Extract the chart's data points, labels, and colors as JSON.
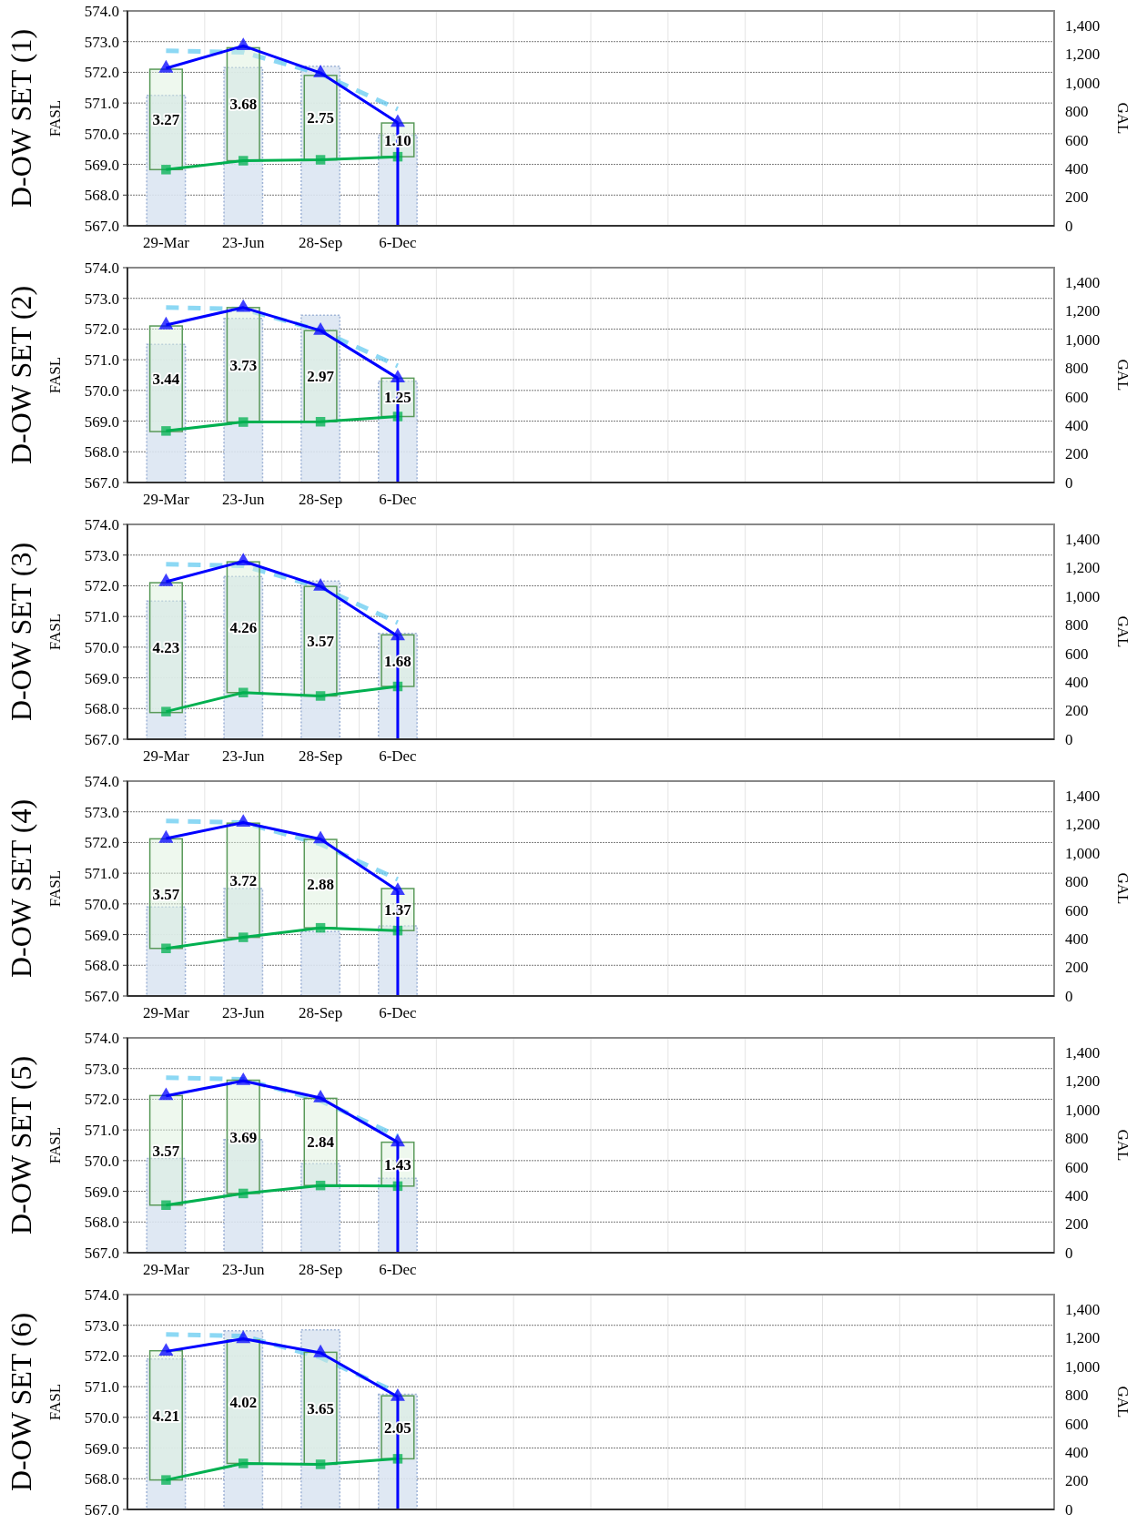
{
  "chart_data": [
    {
      "type": "bar",
      "title": "D-OW SET (1)",
      "ylabel": "FASL",
      "y2label": "GAL",
      "categories": [
        "29-Mar",
        "23-Jun",
        "28-Sep",
        "6-Dec",
        null,
        null,
        null,
        null,
        null,
        null,
        null,
        null
      ],
      "ylim": [
        567,
        574
      ],
      "yticks": [
        {
          "value": 567,
          "label": "567.0"
        },
        {
          "value": 568,
          "label": "568.0"
        },
        {
          "value": 569,
          "label": "569.0"
        },
        {
          "value": 570,
          "label": "570.0"
        },
        {
          "value": 571,
          "label": "571.0"
        },
        {
          "value": 572,
          "label": "572.0"
        },
        {
          "value": 573,
          "label": "573.0"
        },
        {
          "value": 574,
          "label": "574.0"
        }
      ],
      "y2lim": [
        0,
        1500
      ],
      "y2ticks": [
        0,
        200,
        400,
        600,
        800,
        {
          "value": 1000,
          "label": "1,000"
        },
        {
          "value": 1200,
          "label": "1,200"
        },
        {
          "value": 1400,
          "label": "1,400"
        }
      ],
      "grid": true,
      "series": [
        {
          "axis": "y2",
          "color": "#dce6f2",
          "values": [
            911,
            1104,
            1114,
            632,
            null,
            null,
            null,
            null,
            null,
            null,
            null,
            null
          ]
        },
        {
          "type": "line",
          "color": "#5bc8f0",
          "line_style": "dashed",
          "marker": "none",
          "values": [
            572.7,
            572.65,
            571.95,
            570.8,
            null,
            null,
            null,
            null,
            null,
            null,
            null,
            null
          ]
        },
        {
          "type": "bar",
          "color": "#ddf2dd",
          "base": [
            568.83,
            569.12,
            569.15,
            569.25,
            null,
            null,
            null,
            null,
            null,
            null,
            null,
            null
          ],
          "values": [
            3.27,
            3.68,
            2.75,
            1.1,
            null,
            null,
            null,
            null,
            null,
            null,
            null,
            null
          ],
          "value_labels": [
            "3.27",
            "3.68",
            "2.75",
            "1.10",
            null,
            null,
            null,
            null,
            null,
            null,
            null,
            null
          ]
        },
        {
          "type": "line",
          "color": "#00b050",
          "marker": "square",
          "values": [
            568.83,
            569.12,
            569.15,
            569.25,
            null,
            null,
            null,
            null,
            null,
            null,
            null,
            null
          ]
        },
        {
          "type": "line",
          "color": "#0000ff",
          "marker": "triangle",
          "values": [
            572.13,
            572.86,
            571.98,
            570.36,
            null,
            null,
            null,
            null,
            null,
            null,
            null,
            null
          ],
          "errors": [
            null,
            null,
            null,
            [
              567.0,
              570.36
            ],
            null,
            null,
            null,
            null,
            null,
            null,
            null,
            null
          ]
        }
      ]
    },
    {
      "type": "bar",
      "title": "D-OW SET (2)",
      "ylabel": "FASL",
      "y2label": "GAL",
      "categories": [
        "29-Mar",
        "23-Jun",
        "28-Sep",
        "6-Dec",
        null,
        null,
        null,
        null,
        null,
        null,
        null,
        null
      ],
      "ylim": [
        567,
        574
      ],
      "yticks": [
        {
          "value": 567,
          "label": "567.0"
        },
        {
          "value": 568,
          "label": "568.0"
        },
        {
          "value": 569,
          "label": "569.0"
        },
        {
          "value": 570,
          "label": "570.0"
        },
        {
          "value": 571,
          "label": "571.0"
        },
        {
          "value": 572,
          "label": "572.0"
        },
        {
          "value": 573,
          "label": "573.0"
        },
        {
          "value": 574,
          "label": "574.0"
        }
      ],
      "y2lim": [
        0,
        1500
      ],
      "y2ticks": [
        0,
        200,
        400,
        600,
        800,
        {
          "value": 1000,
          "label": "1,000"
        },
        {
          "value": 1200,
          "label": "1,200"
        },
        {
          "value": 1400,
          "label": "1,400"
        }
      ],
      "grid": true,
      "series": [
        {
          "axis": "y2",
          "color": "#dce6f2",
          "values": [
            964,
            1146,
            1168,
            707,
            null,
            null,
            null,
            null,
            null,
            null,
            null,
            null
          ]
        },
        {
          "type": "line",
          "color": "#5bc8f0",
          "line_style": "dashed",
          "marker": "none",
          "values": [
            572.7,
            572.65,
            571.95,
            570.8,
            null,
            null,
            null,
            null,
            null,
            null,
            null,
            null
          ]
        },
        {
          "type": "bar",
          "color": "#ddf2dd",
          "base": [
            568.66,
            568.97,
            568.98,
            569.15,
            null,
            null,
            null,
            null,
            null,
            null,
            null,
            null
          ],
          "values": [
            3.44,
            3.73,
            2.97,
            1.25,
            null,
            null,
            null,
            null,
            null,
            null,
            null,
            null
          ],
          "value_labels": [
            "3.44",
            "3.73",
            "2.97",
            "1.25",
            null,
            null,
            null,
            null,
            null,
            null,
            null,
            null
          ]
        },
        {
          "type": "line",
          "color": "#00b050",
          "marker": "square",
          "values": [
            568.68,
            568.97,
            568.98,
            569.15,
            null,
            null,
            null,
            null,
            null,
            null,
            null,
            null
          ]
        },
        {
          "type": "line",
          "color": "#0000ff",
          "marker": "triangle",
          "values": [
            572.13,
            572.7,
            571.95,
            570.4,
            null,
            null,
            null,
            null,
            null,
            null,
            null,
            null
          ],
          "errors": [
            null,
            null,
            null,
            [
              567.0,
              570.4
            ],
            null,
            null,
            null,
            null,
            null,
            null,
            null,
            null
          ]
        }
      ]
    },
    {
      "type": "bar",
      "title": "D-OW SET (3)",
      "ylabel": "FASL",
      "y2label": "GAL",
      "categories": [
        "29-Mar",
        "23-Jun",
        "28-Sep",
        "6-Dec",
        null,
        null,
        null,
        null,
        null,
        null,
        null,
        null
      ],
      "ylim": [
        567,
        574
      ],
      "yticks": [
        {
          "value": 567,
          "label": "567.0"
        },
        {
          "value": 568,
          "label": "568.0"
        },
        {
          "value": 569,
          "label": "569.0"
        },
        {
          "value": 570,
          "label": "570.0"
        },
        {
          "value": 571,
          "label": "571.0"
        },
        {
          "value": 572,
          "label": "572.0"
        },
        {
          "value": 573,
          "label": "573.0"
        },
        {
          "value": 574,
          "label": "574.0"
        }
      ],
      "y2lim": [
        0,
        1500
      ],
      "y2ticks": [
        0,
        200,
        400,
        600,
        800,
        {
          "value": 1000,
          "label": "1,000"
        },
        {
          "value": 1200,
          "label": "1,200"
        },
        {
          "value": 1400,
          "label": "1,400"
        }
      ],
      "grid": true,
      "series": [
        {
          "axis": "y2",
          "color": "#dce6f2",
          "values": [
            964,
            1136,
            1104,
            739,
            null,
            null,
            null,
            null,
            null,
            null,
            null,
            null
          ]
        },
        {
          "type": "line",
          "color": "#5bc8f0",
          "line_style": "dashed",
          "marker": "none",
          "values": [
            572.7,
            572.65,
            571.95,
            570.8,
            null,
            null,
            null,
            null,
            null,
            null,
            null,
            null
          ]
        },
        {
          "type": "bar",
          "color": "#ddf2dd",
          "base": [
            567.87,
            568.52,
            568.41,
            568.72,
            null,
            null,
            null,
            null,
            null,
            null,
            null,
            null
          ],
          "values": [
            4.23,
            4.26,
            3.57,
            1.68,
            null,
            null,
            null,
            null,
            null,
            null,
            null,
            null
          ],
          "value_labels": [
            "4.23",
            "4.26",
            "3.57",
            "1.68",
            null,
            null,
            null,
            null,
            null,
            null,
            null,
            null
          ]
        },
        {
          "type": "line",
          "color": "#00b050",
          "marker": "square",
          "values": [
            567.9,
            568.52,
            568.41,
            568.72,
            null,
            null,
            null,
            null,
            null,
            null,
            null,
            null
          ]
        },
        {
          "type": "line",
          "color": "#0000ff",
          "marker": "triangle",
          "values": [
            572.13,
            572.8,
            571.98,
            570.36,
            null,
            null,
            null,
            null,
            null,
            null,
            null,
            null
          ],
          "errors": [
            null,
            null,
            null,
            [
              567.0,
              570.36
            ],
            null,
            null,
            null,
            null,
            null,
            null,
            null,
            null
          ]
        }
      ]
    },
    {
      "type": "bar",
      "title": "D-OW SET (4)",
      "ylabel": "FASL",
      "y2label": "GAL",
      "categories": [
        "29-Mar",
        "23-Jun",
        "28-Sep",
        "6-Dec",
        null,
        null,
        null,
        null,
        null,
        null,
        null,
        null
      ],
      "ylim": [
        567,
        574
      ],
      "yticks": [
        {
          "value": 567,
          "label": "567.0"
        },
        {
          "value": 568,
          "label": "568.0"
        },
        {
          "value": 569,
          "label": "569.0"
        },
        {
          "value": 570,
          "label": "570.0"
        },
        {
          "value": 571,
          "label": "571.0"
        },
        {
          "value": 572,
          "label": "572.0"
        },
        {
          "value": 573,
          "label": "573.0"
        },
        {
          "value": 574,
          "label": "574.0"
        }
      ],
      "y2lim": [
        0,
        1500
      ],
      "y2ticks": [
        0,
        200,
        400,
        600,
        800,
        {
          "value": 1000,
          "label": "1,000"
        },
        {
          "value": 1200,
          "label": "1,200"
        },
        {
          "value": 1400,
          "label": "1,400"
        }
      ],
      "grid": true,
      "series": [
        {
          "axis": "y2",
          "color": "#dce6f2",
          "values": [
            621,
            750,
            450,
            489,
            null,
            null,
            null,
            null,
            null,
            null,
            null,
            null
          ]
        },
        {
          "type": "line",
          "color": "#5bc8f0",
          "line_style": "dashed",
          "marker": "none",
          "values": [
            572.7,
            572.65,
            571.95,
            570.8,
            null,
            null,
            null,
            null,
            null,
            null,
            null,
            null
          ]
        },
        {
          "type": "bar",
          "color": "#ddf2dd",
          "base": [
            568.55,
            568.91,
            569.22,
            569.13,
            null,
            null,
            null,
            null,
            null,
            null,
            null,
            null
          ],
          "values": [
            3.57,
            3.72,
            2.88,
            1.37,
            null,
            null,
            null,
            null,
            null,
            null,
            null,
            null
          ],
          "value_labels": [
            "3.57",
            "3.72",
            "2.88",
            "1.37",
            null,
            null,
            null,
            null,
            null,
            null,
            null,
            null
          ]
        },
        {
          "type": "line",
          "color": "#00b050",
          "marker": "square",
          "values": [
            568.55,
            568.91,
            569.22,
            569.13,
            null,
            null,
            null,
            null,
            null,
            null,
            null,
            null
          ]
        },
        {
          "type": "line",
          "color": "#0000ff",
          "marker": "triangle",
          "values": [
            572.13,
            572.65,
            572.11,
            570.43,
            null,
            null,
            null,
            null,
            null,
            null,
            null,
            null
          ],
          "errors": [
            null,
            null,
            null,
            [
              567.0,
              570.43
            ],
            null,
            null,
            null,
            null,
            null,
            null,
            null,
            null
          ]
        }
      ]
    },
    {
      "type": "bar",
      "title": "D-OW SET (5)",
      "ylabel": "FASL",
      "y2label": "GAL",
      "categories": [
        "29-Mar",
        "23-Jun",
        "28-Sep",
        "6-Dec",
        null,
        null,
        null,
        null,
        null,
        null,
        null,
        null
      ],
      "ylim": [
        567,
        574
      ],
      "yticks": [
        {
          "value": 567,
          "label": "567.0"
        },
        {
          "value": 568,
          "label": "568.0"
        },
        {
          "value": 569,
          "label": "569.0"
        },
        {
          "value": 570,
          "label": "570.0"
        },
        {
          "value": 571,
          "label": "571.0"
        },
        {
          "value": 572,
          "label": "572.0"
        },
        {
          "value": 573,
          "label": "573.0"
        },
        {
          "value": 574,
          "label": "574.0"
        }
      ],
      "y2lim": [
        0,
        1500
      ],
      "y2ticks": [
        0,
        200,
        400,
        600,
        800,
        {
          "value": 1000,
          "label": "1,000"
        },
        {
          "value": 1200,
          "label": "1,200"
        },
        {
          "value": 1400,
          "label": "1,400"
        }
      ],
      "grid": true,
      "series": [
        {
          "axis": "y2",
          "color": "#dce6f2",
          "values": [
            658,
            789,
            621,
            519,
            null,
            null,
            null,
            null,
            null,
            null,
            null,
            null
          ]
        },
        {
          "type": "line",
          "color": "#5bc8f0",
          "line_style": "dashed",
          "marker": "none",
          "values": [
            572.7,
            572.65,
            571.95,
            570.8,
            null,
            null,
            null,
            null,
            null,
            null,
            null,
            null
          ]
        },
        {
          "type": "bar",
          "color": "#ddf2dd",
          "base": [
            568.55,
            568.93,
            569.19,
            569.17,
            null,
            null,
            null,
            null,
            null,
            null,
            null,
            null
          ],
          "values": [
            3.57,
            3.69,
            2.84,
            1.43,
            null,
            null,
            null,
            null,
            null,
            null,
            null,
            null
          ],
          "value_labels": [
            "3.57",
            "3.69",
            "2.84",
            "1.43",
            null,
            null,
            null,
            null,
            null,
            null,
            null,
            null
          ]
        },
        {
          "type": "line",
          "color": "#00b050",
          "marker": "square",
          "values": [
            568.55,
            568.93,
            569.19,
            569.17,
            null,
            null,
            null,
            null,
            null,
            null,
            null,
            null
          ]
        },
        {
          "type": "line",
          "color": "#0000ff",
          "marker": "triangle",
          "values": [
            572.11,
            572.6,
            572.04,
            570.6,
            null,
            null,
            null,
            null,
            null,
            null,
            null,
            null
          ],
          "errors": [
            null,
            null,
            null,
            [
              567.0,
              570.6
            ],
            null,
            null,
            null,
            null,
            null,
            null,
            null,
            null
          ]
        }
      ]
    },
    {
      "type": "bar",
      "title": "D-OW SET (6)",
      "ylabel": "FASL",
      "y2label": "GAL",
      "categories": [
        null,
        null,
        null,
        null,
        null,
        null,
        null,
        null,
        null,
        null,
        null,
        null
      ],
      "ylim": [
        567,
        574
      ],
      "yticks": [
        {
          "value": 567,
          "label": "567.0"
        },
        {
          "value": 568,
          "label": "568.0"
        },
        {
          "value": 569,
          "label": "569.0"
        },
        {
          "value": 570,
          "label": "570.0"
        },
        {
          "value": 571,
          "label": "571.0"
        },
        {
          "value": 572,
          "label": "572.0"
        },
        {
          "value": 573,
          "label": "573.0"
        },
        {
          "value": 574,
          "label": "574.0"
        }
      ],
      "y2lim": [
        0,
        1500
      ],
      "y2ticks": [
        0,
        200,
        400,
        600,
        800,
        {
          "value": 1000,
          "label": "1,000"
        },
        {
          "value": 1200,
          "label": "1,200"
        },
        {
          "value": 1400,
          "label": "1,400"
        }
      ],
      "grid": true,
      "series": [
        {
          "axis": "y2",
          "color": "#dce6f2",
          "values": [
            1050,
            1247,
            1254,
            804,
            null,
            null,
            null,
            null,
            null,
            null,
            null,
            null
          ]
        },
        {
          "type": "line",
          "color": "#5bc8f0",
          "line_style": "dashed",
          "marker": "none",
          "values": [
            572.7,
            572.65,
            571.95,
            570.8,
            null,
            null,
            null,
            null,
            null,
            null,
            null,
            null
          ]
        },
        {
          "type": "bar",
          "color": "#ddf2dd",
          "base": [
            567.96,
            568.5,
            568.47,
            568.65,
            null,
            null,
            null,
            null,
            null,
            null,
            null,
            null
          ],
          "values": [
            4.21,
            4.02,
            3.65,
            2.05,
            null,
            null,
            null,
            null,
            null,
            null,
            null,
            null
          ],
          "value_labels": [
            "4.21",
            "4.02",
            "3.65",
            "2.05",
            null,
            null,
            null,
            null,
            null,
            null,
            null,
            null
          ]
        },
        {
          "type": "line",
          "color": "#00b050",
          "marker": "square",
          "values": [
            567.96,
            568.5,
            568.47,
            568.65,
            null,
            null,
            null,
            null,
            null,
            null,
            null,
            null
          ]
        },
        {
          "type": "line",
          "color": "#0000ff",
          "marker": "triangle",
          "values": [
            572.15,
            572.56,
            572.1,
            570.67,
            null,
            null,
            null,
            null,
            null,
            null,
            null,
            null
          ],
          "errors": [
            null,
            null,
            null,
            [
              567.0,
              570.67
            ],
            null,
            null,
            null,
            null,
            null,
            null,
            null,
            null
          ]
        }
      ]
    }
  ]
}
